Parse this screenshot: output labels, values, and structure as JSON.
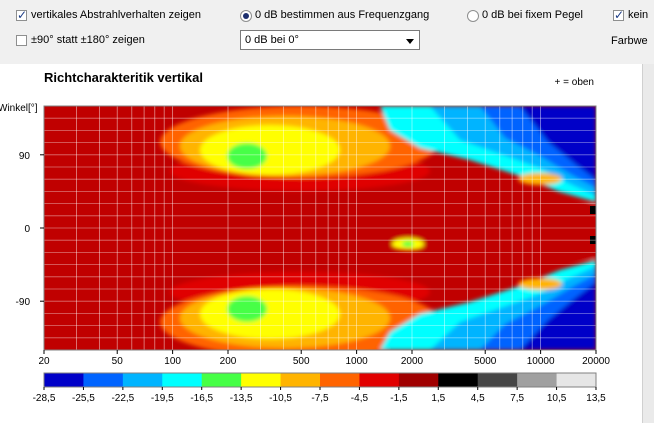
{
  "controls": {
    "cb_vertical": {
      "label": "vertikales Abstrahlverhalten zeigen",
      "checked": true
    },
    "cb_range": {
      "label": "±90° statt ±180° zeigen",
      "checked": false
    },
    "radio_freq": {
      "label": "0 dB bestimmen aus Frequenzgang",
      "selected": true
    },
    "radio_fixed": {
      "label": "0 dB bei fixem Pegel",
      "selected": false
    },
    "dropdown": {
      "value": "0 dB bei 0°"
    },
    "cb_right_partial": {
      "label": "kein",
      "checked": true
    },
    "label_right_partial": "Farbwe"
  },
  "chart": {
    "title": "Richtcharakteritik vertikal",
    "legend_note": "+ = oben",
    "y_axis_label": "Winkel[°]",
    "y_ticks": [
      "90",
      "0",
      "-90"
    ],
    "x_ticks": [
      "20",
      "50",
      "100",
      "200",
      "500",
      "1000",
      "2000",
      "5000",
      "10000",
      "20000"
    ],
    "colorbar_labels": [
      "-28,5",
      "-25,5",
      "-22,5",
      "-19,5",
      "-16,5",
      "-13,5",
      "-10,5",
      "-7,5",
      "-4,5",
      "-1,5",
      "1,5",
      "4,5",
      "7,5",
      "10,5",
      "13,5"
    ],
    "colorbar_colors": [
      "#0000c8",
      "#0064ff",
      "#00b4ff",
      "#00ffff",
      "#46ff46",
      "#ffff00",
      "#ffb400",
      "#ff6400",
      "#e10000",
      "#a00000",
      "#000000",
      "#464646",
      "#a0a0a0",
      "#e6e6e6"
    ]
  },
  "chart_data": {
    "type": "heatmap",
    "title": "Richtcharakteritik vertikal",
    "ylabel": "Winkel[°]",
    "xscale": "log",
    "xlim": [
      20,
      20000
    ],
    "ylim": [
      -150,
      150
    ],
    "colorbar": [
      -28.5,
      -25.5,
      -22.5,
      -19.5,
      -16.5,
      -13.5,
      -10.5,
      -7.5,
      -4.5,
      -1.5,
      1.5,
      4.5,
      7.5,
      10.5,
      13.5
    ],
    "note": "+ = oben"
  }
}
